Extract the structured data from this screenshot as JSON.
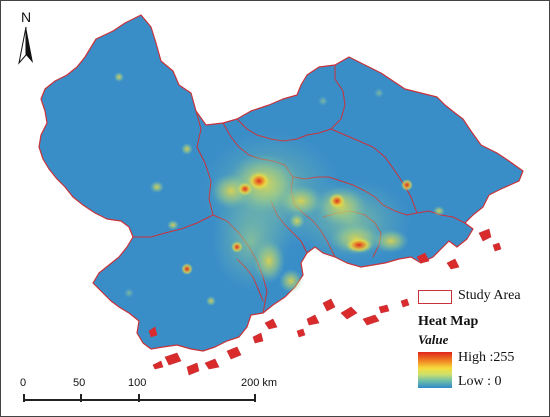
{
  "map": {
    "north_label": "N",
    "colors": {
      "land": "#3a8ec8",
      "boundary": "#c8323a",
      "islands": "#d92b2b",
      "high": "#e0251e",
      "mid": "#f6dc3c",
      "low": "#2f88c8"
    }
  },
  "legend": {
    "study_area_label": "Study Area",
    "title": "Heat Map",
    "subtitle": "Value",
    "high_label": "High :255",
    "low_label": "Low : 0"
  },
  "scalebar": {
    "ticks": [
      "0",
      "50",
      "100",
      "200 km"
    ]
  }
}
